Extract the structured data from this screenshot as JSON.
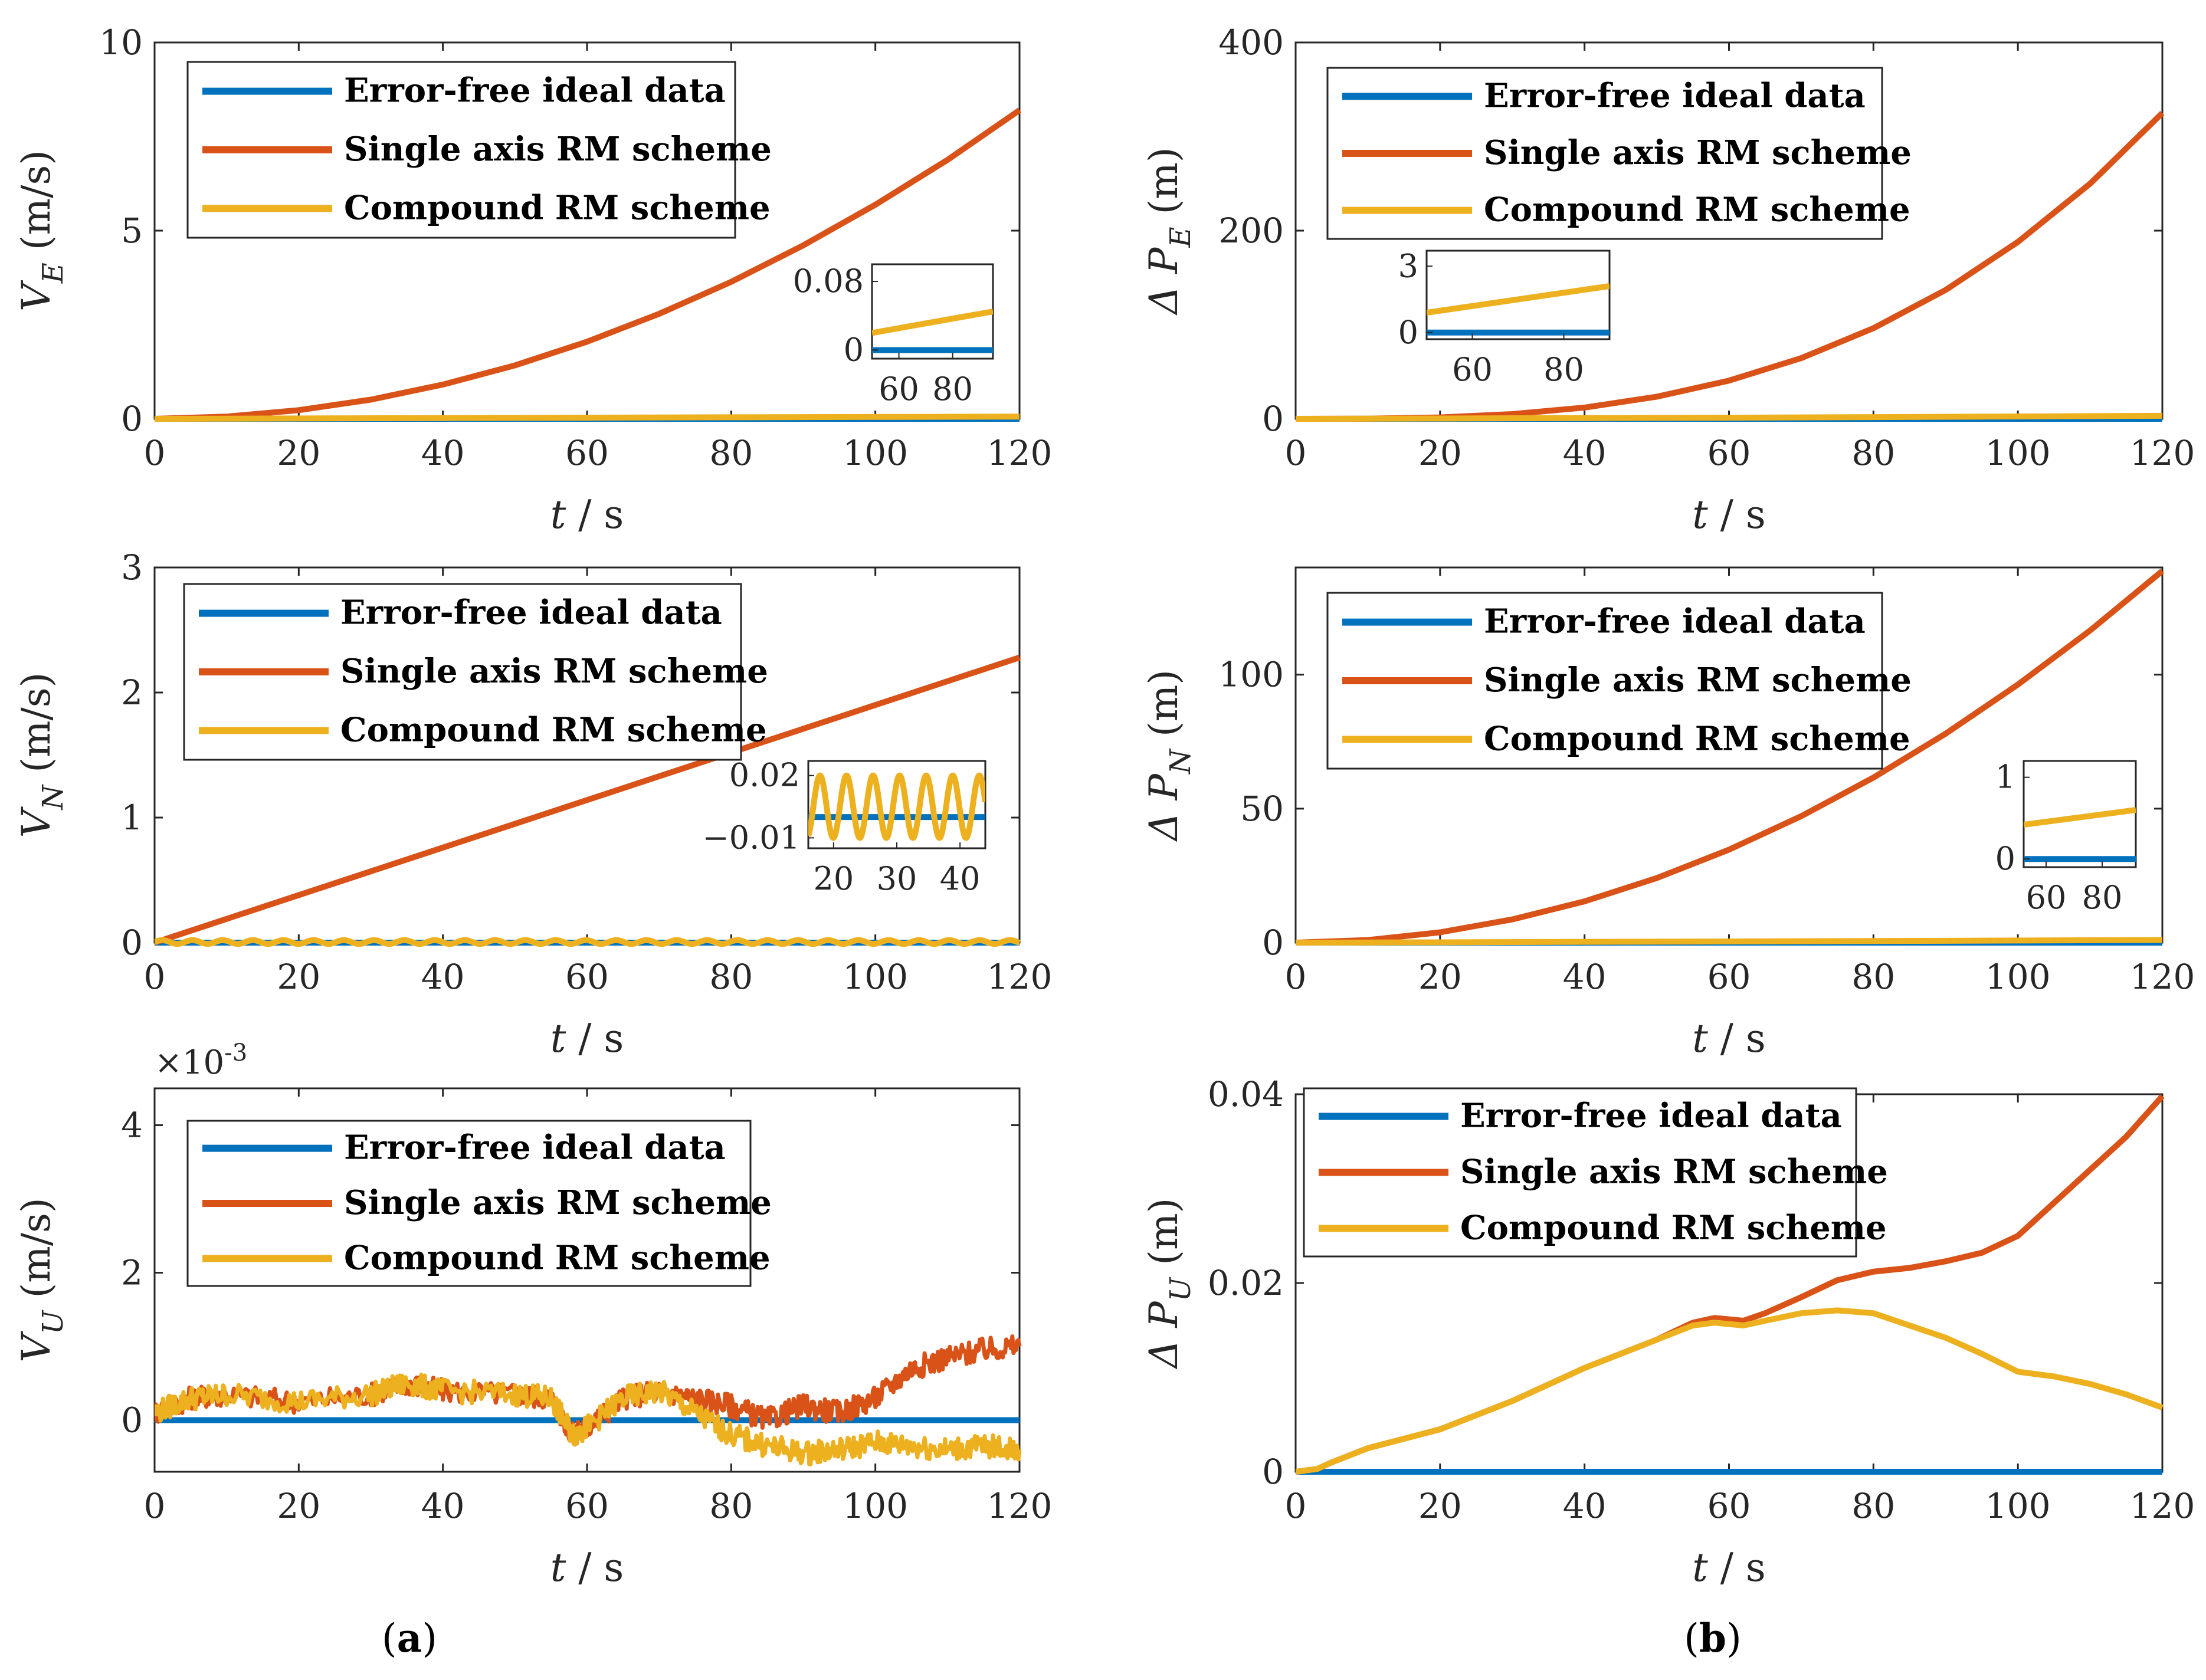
{
  "figure": {
    "panel_labels": [
      {
        "open": "(",
        "letter": "a",
        "close": ")"
      },
      {
        "open": "(",
        "letter": "b",
        "close": ")"
      }
    ]
  },
  "legend_entries": [
    "Error-free ideal data",
    "Single axis RM scheme",
    "Compound RM scheme"
  ],
  "colors": {
    "ideal": "#0072BD",
    "single": "#D95319",
    "compound": "#EDB120",
    "axis": "#262626"
  },
  "chart_data": [
    {
      "id": "VE",
      "type": "line",
      "ylabel": {
        "main": "V",
        "sub": "E",
        "unit": " (m/s)"
      },
      "xlabel": {
        "var": "t",
        "unit": "  / s"
      },
      "xlim": [
        0,
        120
      ],
      "ylim": [
        0,
        10
      ],
      "xticks": [
        "0",
        "20",
        "40",
        "60",
        "80",
        "100",
        "120"
      ],
      "yticks": [
        {
          "v": 0,
          "l": "0"
        },
        {
          "v": 5,
          "l": "5"
        },
        {
          "v": 10,
          "l": "10"
        }
      ],
      "series": [
        {
          "name": "Error-free ideal data",
          "x": [
            0,
            120
          ],
          "y": [
            0,
            0
          ]
        },
        {
          "name": "Single axis RM scheme",
          "x": [
            0,
            10,
            20,
            30,
            40,
            50,
            60,
            70,
            80,
            90,
            100,
            110,
            120
          ],
          "y": [
            0,
            0.06,
            0.23,
            0.51,
            0.91,
            1.42,
            2.05,
            2.79,
            3.64,
            4.61,
            5.69,
            6.88,
            8.2
          ]
        },
        {
          "name": "Compound RM scheme",
          "x": [
            0,
            20,
            40,
            60,
            80,
            100,
            120
          ],
          "y": [
            0,
            0.01,
            0.02,
            0.03,
            0.04,
            0.05,
            0.06
          ]
        }
      ],
      "inset": {
        "xlim": [
          50,
          95
        ],
        "ylim": [
          -0.01,
          0.1
        ],
        "xticks": [
          {
            "v": 60,
            "l": "60"
          },
          {
            "v": 80,
            "l": "80"
          }
        ],
        "yticks": [
          {
            "v": 0,
            "l": "0"
          },
          {
            "v": 0.08,
            "l": "0.08"
          }
        ],
        "series": [
          {
            "name": "Error-free ideal data",
            "x": [
              50,
              95
            ],
            "y": [
              0,
              0
            ]
          },
          {
            "name": "Compound RM scheme",
            "x": [
              50,
              95
            ],
            "y": [
              0.02,
              0.045
            ]
          }
        ]
      }
    },
    {
      "id": "VN",
      "type": "line",
      "ylabel": {
        "main": "V",
        "sub": "N",
        "unit": " (m/s)"
      },
      "xlabel": {
        "var": "t",
        "unit": "  / s"
      },
      "xlim": [
        0,
        120
      ],
      "ylim": [
        0,
        3
      ],
      "xticks": [
        "0",
        "20",
        "40",
        "60",
        "80",
        "100",
        "120"
      ],
      "yticks": [
        {
          "v": 0,
          "l": "0"
        },
        {
          "v": 1,
          "l": "1"
        },
        {
          "v": 2,
          "l": "2"
        },
        {
          "v": 3,
          "l": "3"
        }
      ],
      "series": [
        {
          "name": "Error-free ideal data",
          "x": [
            0,
            120
          ],
          "y": [
            0,
            0
          ]
        },
        {
          "name": "Single axis RM scheme",
          "x": [
            0,
            120
          ],
          "y": [
            0,
            2.28
          ]
        },
        {
          "name": "Compound RM scheme",
          "formula": "sine",
          "amp": 0.015,
          "period": 4.2,
          "offset": 0.005
        }
      ],
      "inset": {
        "xlim": [
          16,
          44
        ],
        "ylim": [
          -0.015,
          0.027
        ],
        "xticks": [
          {
            "v": 20,
            "l": "20"
          },
          {
            "v": 30,
            "l": "30"
          },
          {
            "v": 40,
            "l": "40"
          }
        ],
        "yticks": [
          {
            "v": -0.01,
            "l": "−0.01"
          },
          {
            "v": 0.02,
            "l": "0.02"
          }
        ],
        "series": [
          {
            "name": "Error-free ideal data",
            "x": [
              16,
              44
            ],
            "y": [
              0,
              0
            ]
          },
          {
            "name": "Compound RM scheme",
            "formula": "sine",
            "amp": 0.015,
            "period": 4.2,
            "offset": 0.005
          }
        ]
      }
    },
    {
      "id": "VU",
      "type": "line",
      "multiplier": "×10",
      "multiplier_exp": "-3",
      "ylabel": {
        "main": "V",
        "sub": "U",
        "unit": " (m/s)"
      },
      "xlabel": {
        "var": "t",
        "unit": "  / s"
      },
      "xlim": [
        0,
        120
      ],
      "ylim": [
        -0.7,
        4.5
      ],
      "xticks": [
        "0",
        "20",
        "40",
        "60",
        "80",
        "100",
        "120"
      ],
      "yticks": [
        {
          "v": 0,
          "l": "0"
        },
        {
          "v": 2,
          "l": "2"
        },
        {
          "v": 4,
          "l": "4"
        }
      ],
      "series": [
        {
          "name": "Error-free ideal data",
          "x": [
            0,
            120
          ],
          "y": [
            0,
            0
          ]
        },
        {
          "name": "Single axis RM scheme",
          "x": [
            0,
            5,
            10,
            20,
            30,
            35,
            40,
            50,
            55,
            58,
            60,
            65,
            70,
            75,
            80,
            85,
            90,
            95,
            100,
            105,
            110,
            115,
            120
          ],
          "y": [
            0.1,
            0.3,
            0.35,
            0.25,
            0.35,
            0.5,
            0.4,
            0.35,
            0.3,
            -0.2,
            -0.1,
            0.3,
            0.4,
            0.3,
            0.2,
            0.0,
            0.2,
            0.1,
            0.3,
            0.7,
            0.85,
            0.95,
            1.0
          ]
        },
        {
          "name": "Compound RM scheme",
          "x": [
            0,
            5,
            10,
            20,
            30,
            35,
            40,
            50,
            55,
            58,
            60,
            65,
            70,
            75,
            80,
            85,
            90,
            95,
            100,
            105,
            110,
            115,
            120
          ],
          "y": [
            0.1,
            0.3,
            0.35,
            0.25,
            0.35,
            0.5,
            0.4,
            0.35,
            0.3,
            -0.2,
            -0.1,
            0.3,
            0.4,
            0.1,
            -0.2,
            -0.35,
            -0.45,
            -0.4,
            -0.3,
            -0.35,
            -0.4,
            -0.35,
            -0.4
          ]
        }
      ]
    },
    {
      "id": "PE",
      "type": "line",
      "ylabel": {
        "main": "Δ P",
        "sub": "E",
        "unit": " (m)"
      },
      "xlabel": {
        "var": "t",
        "unit": "  / s"
      },
      "xlim": [
        0,
        120
      ],
      "ylim": [
        0,
        400
      ],
      "xticks": [
        "0",
        "20",
        "40",
        "60",
        "80",
        "100",
        "120"
      ],
      "yticks": [
        {
          "v": 0,
          "l": "0"
        },
        {
          "v": 200,
          "l": "200"
        },
        {
          "v": 400,
          "l": "400"
        }
      ],
      "series": [
        {
          "name": "Error-free ideal data",
          "x": [
            0,
            120
          ],
          "y": [
            0,
            0
          ]
        },
        {
          "name": "Single axis RM scheme",
          "x": [
            0,
            10,
            20,
            30,
            40,
            50,
            60,
            70,
            80,
            90,
            100,
            110,
            120
          ],
          "y": [
            0,
            0.2,
            1.5,
            5,
            12,
            23.5,
            40.6,
            64.5,
            96.3,
            137,
            188,
            250,
            325
          ]
        },
        {
          "name": "Compound RM scheme",
          "x": [
            0,
            20,
            40,
            60,
            80,
            100,
            120
          ],
          "y": [
            0,
            0.3,
            0.8,
            1.2,
            1.8,
            2.5,
            3.2
          ]
        }
      ],
      "inset": {
        "xlim": [
          50,
          90
        ],
        "ylim": [
          -0.3,
          3.7
        ],
        "xticks": [
          {
            "v": 60,
            "l": "60"
          },
          {
            "v": 80,
            "l": "80"
          }
        ],
        "yticks": [
          {
            "v": 0,
            "l": "0"
          },
          {
            "v": 3,
            "l": "3"
          }
        ],
        "series": [
          {
            "name": "Error-free ideal data",
            "x": [
              50,
              90
            ],
            "y": [
              0,
              0
            ]
          },
          {
            "name": "Compound RM scheme",
            "x": [
              50,
              90
            ],
            "y": [
              0.9,
              2.1
            ]
          }
        ]
      }
    },
    {
      "id": "PN",
      "type": "line",
      "ylabel": {
        "main": "Δ P",
        "sub": "N",
        "unit": " (m)"
      },
      "xlabel": {
        "var": "t",
        "unit": "  / s"
      },
      "xlim": [
        0,
        120
      ],
      "ylim": [
        0,
        140
      ],
      "xticks": [
        "0",
        "20",
        "40",
        "60",
        "80",
        "100",
        "120"
      ],
      "yticks": [
        {
          "v": 0,
          "l": "0"
        },
        {
          "v": 50,
          "l": "50"
        },
        {
          "v": 100,
          "l": "100"
        }
      ],
      "series": [
        {
          "name": "Error-free ideal data",
          "x": [
            0,
            120
          ],
          "y": [
            0,
            0
          ]
        },
        {
          "name": "Single axis RM scheme",
          "x": [
            0,
            10,
            20,
            30,
            40,
            50,
            60,
            70,
            80,
            90,
            100,
            110,
            120
          ],
          "y": [
            0,
            0.96,
            3.85,
            8.67,
            15.4,
            24.1,
            34.7,
            47.2,
            61.6,
            78,
            96.3,
            116.5,
            138.7
          ]
        },
        {
          "name": "Compound RM scheme",
          "x": [
            0,
            20,
            40,
            60,
            80,
            100,
            120
          ],
          "y": [
            0,
            0.1,
            0.3,
            0.45,
            0.6,
            0.8,
            1.0
          ]
        }
      ],
      "inset": {
        "xlim": [
          52,
          92
        ],
        "ylim": [
          -0.1,
          1.2
        ],
        "xticks": [
          {
            "v": 60,
            "l": "60"
          },
          {
            "v": 80,
            "l": "80"
          }
        ],
        "yticks": [
          {
            "v": 0,
            "l": "0"
          },
          {
            "v": 1,
            "l": "1"
          }
        ],
        "series": [
          {
            "name": "Error-free ideal data",
            "x": [
              52,
              92
            ],
            "y": [
              0,
              0
            ]
          },
          {
            "name": "Compound RM scheme",
            "x": [
              52,
              92
            ],
            "y": [
              0.42,
              0.6
            ]
          }
        ]
      }
    },
    {
      "id": "PU",
      "type": "line",
      "ylabel": {
        "main": "Δ P",
        "sub": "U",
        "unit": " (m)"
      },
      "xlabel": {
        "var": "t",
        "unit": "  / s"
      },
      "xlim": [
        0,
        120
      ],
      "ylim": [
        0,
        0.04
      ],
      "xticks": [
        "0",
        "20",
        "40",
        "60",
        "80",
        "100",
        "120"
      ],
      "yticks": [
        {
          "v": 0,
          "l": "0"
        },
        {
          "v": 0.02,
          "l": "0.02"
        },
        {
          "v": 0.04,
          "l": "0.04"
        }
      ],
      "series": [
        {
          "name": "Error-free ideal data",
          "x": [
            0,
            120
          ],
          "y": [
            0,
            0
          ]
        },
        {
          "name": "Single axis RM scheme",
          "x": [
            0,
            3,
            5,
            10,
            20,
            30,
            40,
            50,
            55,
            58,
            62,
            65,
            70,
            75,
            80,
            85,
            90,
            95,
            100,
            105,
            110,
            115,
            120
          ],
          "y": [
            0,
            0.0003,
            0.001,
            0.0025,
            0.0045,
            0.0075,
            0.011,
            0.014,
            0.0158,
            0.0163,
            0.016,
            0.0168,
            0.0185,
            0.0203,
            0.0212,
            0.0216,
            0.0223,
            0.0232,
            0.025,
            0.0285,
            0.032,
            0.0355,
            0.0398
          ]
        },
        {
          "name": "Compound RM scheme",
          "x": [
            0,
            3,
            5,
            10,
            20,
            30,
            40,
            50,
            55,
            58,
            62,
            65,
            70,
            75,
            80,
            85,
            90,
            95,
            100,
            105,
            110,
            115,
            120
          ],
          "y": [
            0,
            0.0003,
            0.001,
            0.0025,
            0.0045,
            0.0075,
            0.011,
            0.014,
            0.0155,
            0.0158,
            0.0155,
            0.016,
            0.0168,
            0.0171,
            0.0168,
            0.0155,
            0.0142,
            0.0125,
            0.0106,
            0.0101,
            0.0093,
            0.0082,
            0.0068
          ]
        }
      ]
    }
  ]
}
